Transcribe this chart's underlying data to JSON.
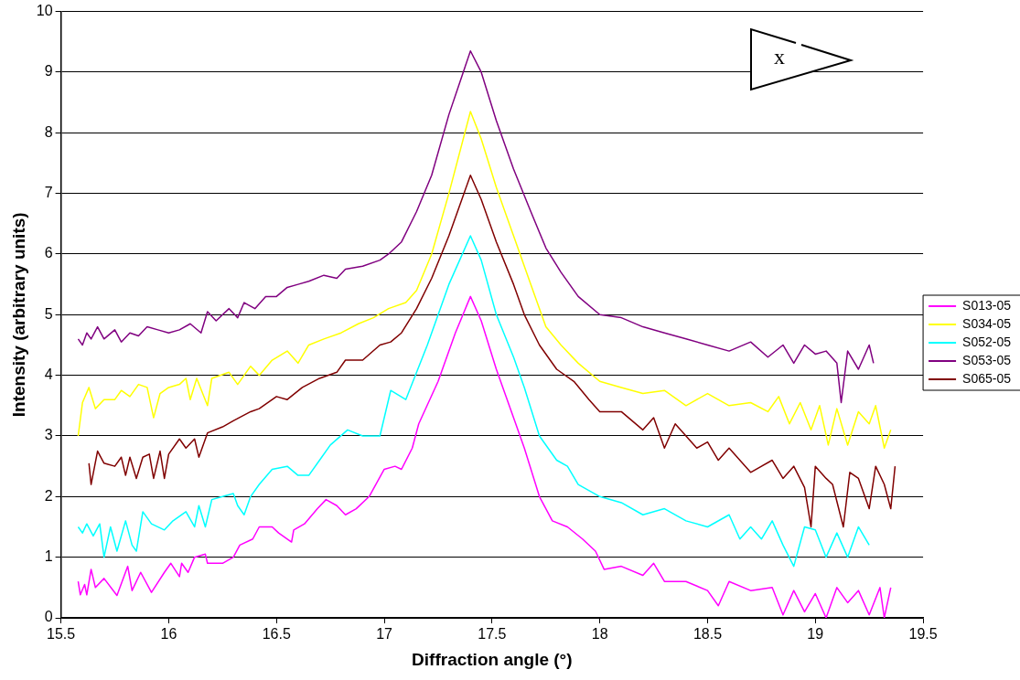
{
  "chart_data": {
    "type": "line",
    "xlabel": "Diffraction angle (°)",
    "ylabel": "Intensity (arbitrary units)",
    "xlim": [
      15.5,
      19.5
    ],
    "xticks": [
      15.5,
      16,
      16.5,
      17,
      17.5,
      18,
      18.5,
      19,
      19.5
    ],
    "ylim": [
      0,
      10
    ],
    "yticks": [
      0,
      1,
      2,
      3,
      4,
      5,
      6,
      7,
      8,
      9,
      10
    ],
    "grid": "y",
    "legend": "right",
    "marker": "none",
    "line_style": "solid",
    "annotations": [
      "x"
    ],
    "series": [
      {
        "name": "S013-05",
        "color": "#ff00ff",
        "x": [
          15.58,
          15.59,
          15.61,
          15.62,
          15.64,
          15.66,
          15.7,
          15.76,
          15.81,
          15.83,
          15.87,
          15.92,
          15.98,
          16.01,
          16.05,
          16.06,
          16.09,
          16.12,
          16.17,
          16.18,
          16.25,
          16.3,
          16.33,
          16.39,
          16.42,
          16.48,
          16.51,
          16.57,
          16.58,
          16.63,
          16.69,
          16.73,
          16.78,
          16.82,
          16.87,
          16.93,
          17.0,
          17.05,
          17.08,
          17.13,
          17.16,
          17.25,
          17.33,
          17.4,
          17.45,
          17.52,
          17.6,
          17.65,
          17.72,
          17.78,
          17.85,
          17.92,
          17.98,
          18.02,
          18.1,
          18.2,
          18.25,
          18.3,
          18.4,
          18.5,
          18.55,
          18.6,
          18.7,
          18.8,
          18.85,
          18.9,
          18.95,
          19.0,
          19.05,
          19.1,
          19.15,
          19.2,
          19.25,
          19.3,
          19.32,
          19.35
        ],
        "values": [
          0.6,
          0.38,
          0.55,
          0.38,
          0.8,
          0.5,
          0.65,
          0.37,
          0.85,
          0.45,
          0.75,
          0.42,
          0.75,
          0.9,
          0.68,
          0.9,
          0.75,
          1.0,
          1.05,
          0.9,
          0.9,
          1.0,
          1.2,
          1.3,
          1.5,
          1.5,
          1.4,
          1.25,
          1.45,
          1.55,
          1.8,
          1.95,
          1.85,
          1.7,
          1.8,
          2.0,
          2.45,
          2.5,
          2.45,
          2.8,
          3.2,
          3.9,
          4.7,
          5.3,
          4.9,
          4.1,
          3.3,
          2.8,
          2.0,
          1.6,
          1.5,
          1.3,
          1.1,
          0.8,
          0.85,
          0.7,
          0.9,
          0.6,
          0.6,
          0.45,
          0.2,
          0.6,
          0.45,
          0.5,
          0.05,
          0.45,
          0.1,
          0.4,
          0.0,
          0.5,
          0.25,
          0.45,
          0.05,
          0.5,
          0.0,
          0.5
        ]
      },
      {
        "name": "S034-05",
        "color": "#ffff00",
        "x": [
          15.58,
          15.6,
          15.63,
          15.66,
          15.7,
          15.75,
          15.78,
          15.82,
          15.86,
          15.9,
          15.93,
          15.96,
          16.0,
          16.05,
          16.08,
          16.1,
          16.13,
          16.18,
          16.2,
          16.28,
          16.32,
          16.38,
          16.42,
          16.48,
          16.55,
          16.6,
          16.65,
          16.72,
          16.8,
          16.88,
          16.95,
          17.02,
          17.1,
          17.15,
          17.22,
          17.3,
          17.4,
          17.45,
          17.52,
          17.6,
          17.68,
          17.75,
          17.82,
          17.9,
          18.0,
          18.1,
          18.2,
          18.3,
          18.4,
          18.5,
          18.6,
          18.7,
          18.78,
          18.83,
          18.88,
          18.93,
          18.98,
          19.02,
          19.06,
          19.1,
          19.15,
          19.2,
          19.25,
          19.28,
          19.32,
          19.35
        ],
        "values": [
          3.0,
          3.55,
          3.8,
          3.45,
          3.6,
          3.6,
          3.75,
          3.65,
          3.85,
          3.8,
          3.3,
          3.7,
          3.8,
          3.85,
          3.95,
          3.6,
          3.95,
          3.5,
          3.95,
          4.05,
          3.85,
          4.15,
          4.0,
          4.25,
          4.4,
          4.2,
          4.5,
          4.6,
          4.7,
          4.85,
          4.95,
          5.1,
          5.2,
          5.4,
          6.0,
          7.0,
          8.35,
          7.9,
          7.1,
          6.3,
          5.5,
          4.8,
          4.5,
          4.2,
          3.9,
          3.8,
          3.7,
          3.75,
          3.5,
          3.7,
          3.5,
          3.55,
          3.4,
          3.65,
          3.2,
          3.55,
          3.1,
          3.5,
          2.85,
          3.45,
          2.85,
          3.4,
          3.2,
          3.5,
          2.8,
          3.1
        ]
      },
      {
        "name": "S052-05",
        "color": "#00ffff",
        "x": [
          15.58,
          15.6,
          15.62,
          15.65,
          15.68,
          15.7,
          15.73,
          15.76,
          15.8,
          15.83,
          15.85,
          15.88,
          15.92,
          15.98,
          16.02,
          16.08,
          16.12,
          16.14,
          16.17,
          16.2,
          16.25,
          16.3,
          16.32,
          16.35,
          16.38,
          16.42,
          16.48,
          16.55,
          16.6,
          16.65,
          16.7,
          16.75,
          16.83,
          16.9,
          16.98,
          17.03,
          17.1,
          17.2,
          17.3,
          17.4,
          17.45,
          17.52,
          17.6,
          17.65,
          17.72,
          17.8,
          17.85,
          17.9,
          18.0,
          18.1,
          18.2,
          18.3,
          18.4,
          18.5,
          18.6,
          18.65,
          18.7,
          18.75,
          18.8,
          18.85,
          18.9,
          18.95,
          19.0,
          19.05,
          19.1,
          19.15,
          19.2,
          19.25
        ],
        "values": [
          1.5,
          1.4,
          1.55,
          1.35,
          1.55,
          1.0,
          1.5,
          1.1,
          1.6,
          1.2,
          1.1,
          1.75,
          1.55,
          1.45,
          1.6,
          1.75,
          1.5,
          1.85,
          1.5,
          1.95,
          2.0,
          2.05,
          1.85,
          1.7,
          2.0,
          2.2,
          2.45,
          2.5,
          2.35,
          2.35,
          2.6,
          2.85,
          3.1,
          3.0,
          3.0,
          3.75,
          3.6,
          4.5,
          5.5,
          6.3,
          5.9,
          5.0,
          4.3,
          3.8,
          3.0,
          2.6,
          2.5,
          2.2,
          2.0,
          1.9,
          1.7,
          1.8,
          1.6,
          1.5,
          1.7,
          1.3,
          1.5,
          1.3,
          1.6,
          1.2,
          0.85,
          1.5,
          1.45,
          1.0,
          1.4,
          1.0,
          1.5,
          1.2
        ]
      },
      {
        "name": "S053-05",
        "color": "#800080",
        "x": [
          15.58,
          15.6,
          15.62,
          15.64,
          15.67,
          15.7,
          15.75,
          15.78,
          15.82,
          15.86,
          15.9,
          15.95,
          16.0,
          16.05,
          16.1,
          16.15,
          16.18,
          16.22,
          16.28,
          16.32,
          16.35,
          16.4,
          16.45,
          16.5,
          16.55,
          16.6,
          16.65,
          16.72,
          16.78,
          16.82,
          16.9,
          16.98,
          17.02,
          17.08,
          17.15,
          17.22,
          17.3,
          17.4,
          17.45,
          17.52,
          17.6,
          17.68,
          17.75,
          17.82,
          17.9,
          18.0,
          18.1,
          18.2,
          18.3,
          18.4,
          18.5,
          18.6,
          18.7,
          18.78,
          18.85,
          18.9,
          18.95,
          19.0,
          19.05,
          19.1,
          19.12,
          19.15,
          19.2,
          19.25,
          19.27
        ],
        "values": [
          4.6,
          4.5,
          4.7,
          4.6,
          4.8,
          4.6,
          4.75,
          4.55,
          4.7,
          4.65,
          4.8,
          4.75,
          4.7,
          4.75,
          4.85,
          4.7,
          5.05,
          4.9,
          5.1,
          4.95,
          5.2,
          5.1,
          5.3,
          5.3,
          5.45,
          5.5,
          5.55,
          5.65,
          5.6,
          5.75,
          5.8,
          5.9,
          6.0,
          6.2,
          6.7,
          7.3,
          8.3,
          9.35,
          9.0,
          8.2,
          7.4,
          6.7,
          6.1,
          5.7,
          5.3,
          5.0,
          4.95,
          4.8,
          4.7,
          4.6,
          4.5,
          4.4,
          4.55,
          4.3,
          4.5,
          4.2,
          4.5,
          4.35,
          4.4,
          4.2,
          3.55,
          4.4,
          4.1,
          4.5,
          4.2
        ]
      },
      {
        "name": "S065-05",
        "color": "#800000",
        "x": [
          15.63,
          15.64,
          15.67,
          15.7,
          15.75,
          15.78,
          15.8,
          15.82,
          15.85,
          15.88,
          15.91,
          15.93,
          15.96,
          15.98,
          16.0,
          16.05,
          16.08,
          16.12,
          16.14,
          16.18,
          16.25,
          16.3,
          16.38,
          16.42,
          16.5,
          16.55,
          16.62,
          16.7,
          16.78,
          16.82,
          16.9,
          16.98,
          17.03,
          17.08,
          17.15,
          17.22,
          17.3,
          17.4,
          17.45,
          17.52,
          17.6,
          17.65,
          17.72,
          17.8,
          17.88,
          17.95,
          18.0,
          18.1,
          18.2,
          18.25,
          18.3,
          18.35,
          18.4,
          18.45,
          18.5,
          18.55,
          18.6,
          18.7,
          18.8,
          18.85,
          18.9,
          18.95,
          18.98,
          19.0,
          19.05,
          19.08,
          19.13,
          19.16,
          19.2,
          19.25,
          19.28,
          19.32,
          19.35,
          19.37
        ],
        "values": [
          2.55,
          2.2,
          2.75,
          2.55,
          2.5,
          2.65,
          2.35,
          2.65,
          2.3,
          2.65,
          2.7,
          2.3,
          2.75,
          2.3,
          2.7,
          2.95,
          2.8,
          2.95,
          2.65,
          3.05,
          3.15,
          3.25,
          3.4,
          3.45,
          3.65,
          3.6,
          3.8,
          3.95,
          4.05,
          4.25,
          4.25,
          4.5,
          4.55,
          4.7,
          5.1,
          5.6,
          6.3,
          7.3,
          6.9,
          6.2,
          5.5,
          5.0,
          4.5,
          4.1,
          3.9,
          3.6,
          3.4,
          3.4,
          3.1,
          3.3,
          2.8,
          3.2,
          3.0,
          2.8,
          2.9,
          2.6,
          2.8,
          2.4,
          2.6,
          2.3,
          2.5,
          2.15,
          1.5,
          2.5,
          2.3,
          2.2,
          1.5,
          2.4,
          2.3,
          1.8,
          2.5,
          2.2,
          1.8,
          2.5
        ]
      }
    ]
  }
}
